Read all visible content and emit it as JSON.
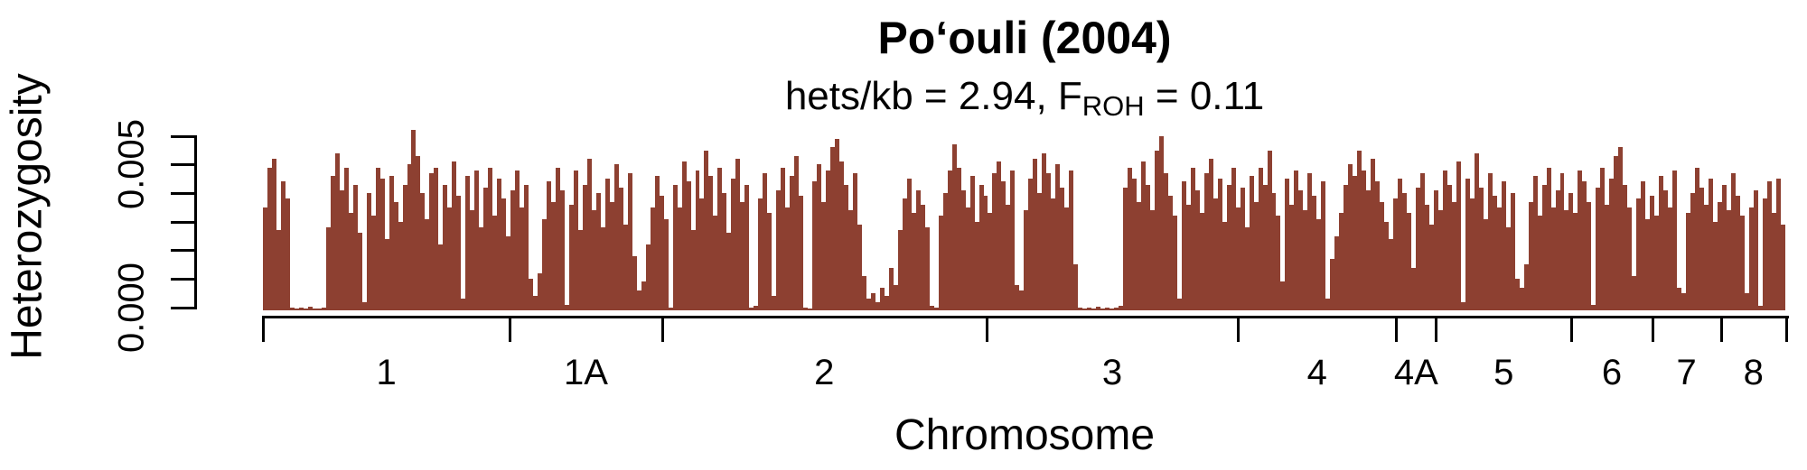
{
  "title": "Po‘ouli (2004)",
  "subtitle": {
    "prefix": "hets/kb = 2.94, F",
    "subscript": "ROH",
    "suffix": " = 0.11"
  },
  "y_axis": {
    "label": "Heterozygosity",
    "tick_labels": [
      "0.000",
      "0.005"
    ]
  },
  "x_axis": {
    "label": "Chromosome",
    "tick_labels": [
      "1",
      "1A",
      "2",
      "3",
      "4",
      "4A",
      "5",
      "6",
      "7",
      "8"
    ]
  },
  "colors": {
    "bar": "#8D4031",
    "axis": "#000000",
    "text": "#000000",
    "background": "#FFFFFF"
  },
  "chart_data": {
    "type": "bar",
    "title": "Po‘ouli (2004)",
    "subtitle": "hets/kb = 2.94, F_ROH = 0.11",
    "xlabel": "Chromosome",
    "ylabel": "Heterozygosity",
    "ylim": [
      0,
      0.006
    ],
    "grid": false,
    "legend": "none",
    "y_ticks": [
      0,
      0.001,
      0.002,
      0.003,
      0.004,
      0.005,
      0.006
    ],
    "y_tick_labels": [
      {
        "value": 0,
        "label": "0.000"
      },
      {
        "value": 0.005,
        "label": "0.005"
      }
    ],
    "categories": [
      "1",
      "1A",
      "2",
      "3",
      "4",
      "4A",
      "5",
      "6",
      "7",
      "8"
    ],
    "chromosome_boundaries_frac": [
      0,
      0.162,
      0.262,
      0.475,
      0.64,
      0.744,
      0.77,
      0.859,
      0.912,
      0.957,
      1.0
    ],
    "values_unit": "heterozygosity per window, multiplied by 1000 (estimated from plot pixels)",
    "values_x1000": [
      3.6,
      5.0,
      5.3,
      2.8,
      4.5,
      3.9,
      0.1,
      0.06,
      0.1,
      0.07,
      0.12,
      0.08,
      0.05,
      0.1,
      2.9,
      4.7,
      5.5,
      4.2,
      5.0,
      3.4,
      4.4,
      2.7,
      0.3,
      4.1,
      3.3,
      5.0,
      4.6,
      2.5,
      4.7,
      3.8,
      3.1,
      4.4,
      5.1,
      6.3,
      5.4,
      4.1,
      3.2,
      4.8,
      5.0,
      2.3,
      4.4,
      3.6,
      5.2,
      4.0,
      0.4,
      4.7,
      3.5,
      4.9,
      2.9,
      4.3,
      5.0,
      3.3,
      4.6,
      3.9,
      2.6,
      4.2,
      4.9,
      3.6,
      4.4,
      1.1,
      0.5,
      1.3,
      3.2,
      4.5,
      3.8,
      5.0,
      4.2,
      0.2,
      3.7,
      4.9,
      2.8,
      4.4,
      5.3,
      3.5,
      4.1,
      2.9,
      4.6,
      3.8,
      5.1,
      4.3,
      3.0,
      4.8,
      1.9,
      0.7,
      1.0,
      2.3,
      3.6,
      4.7,
      4.0,
      3.2,
      0.1,
      4.4,
      3.6,
      5.2,
      4.5,
      2.8,
      4.9,
      3.9,
      5.6,
      4.7,
      3.3,
      5.0,
      4.1,
      2.7,
      4.6,
      5.3,
      3.8,
      4.4,
      0.1,
      0.15,
      3.9,
      4.8,
      3.4,
      0.5,
      4.2,
      5.0,
      3.6,
      4.7,
      5.4,
      4.0,
      0.1,
      0.08,
      4.5,
      5.1,
      3.8,
      4.9,
      5.7,
      6.0,
      5.2,
      4.4,
      3.5,
      4.8,
      3.0,
      1.2,
      0.4,
      0.6,
      0.3,
      0.8,
      0.5,
      1.5,
      0.9,
      2.8,
      3.9,
      4.6,
      3.4,
      4.2,
      3.7,
      2.9,
      0.15,
      0.1,
      3.3,
      4.1,
      4.9,
      5.8,
      5.0,
      4.2,
      3.6,
      4.7,
      3.1,
      4.4,
      4.0,
      3.4,
      4.8,
      5.2,
      4.5,
      3.7,
      4.9,
      0.9,
      0.7,
      3.5,
      4.6,
      5.3,
      4.1,
      5.5,
      4.8,
      3.9,
      5.1,
      4.3,
      3.6,
      4.9,
      1.6,
      0.1,
      0.07,
      0.1,
      0.05,
      0.12,
      0.08,
      0.1,
      0.06,
      0.1,
      0.15,
      4.3,
      5.0,
      4.6,
      3.8,
      5.2,
      4.4,
      3.5,
      5.6,
      6.1,
      4.8,
      4.0,
      3.3,
      0.4,
      4.5,
      3.7,
      5.0,
      4.2,
      3.4,
      4.8,
      5.3,
      3.9,
      4.6,
      3.1,
      4.4,
      5.0,
      3.6,
      4.3,
      2.9,
      4.7,
      3.8,
      5.0,
      4.4,
      5.6,
      4.1,
      3.3,
      1.0,
      4.6,
      3.7,
      4.9,
      4.2,
      3.5,
      4.8,
      4.0,
      3.2,
      4.5,
      0.4,
      1.8,
      2.6,
      3.4,
      4.4,
      5.1,
      4.7,
      5.6,
      4.9,
      4.2,
      5.3,
      4.5,
      3.8,
      3.1,
      2.5,
      3.9,
      4.6,
      4.1,
      3.4,
      1.5,
      4.3,
      4.8,
      3.7,
      3.0,
      4.2,
      3.5,
      4.9,
      4.4,
      3.8,
      5.2,
      0.3,
      4.6,
      3.9,
      5.5,
      4.3,
      3.2,
      4.8,
      4.0,
      3.6,
      4.5,
      2.9,
      4.1,
      1.1,
      0.8,
      1.6,
      3.8,
      4.7,
      3.3,
      4.4,
      5.0,
      3.6,
      4.2,
      4.8,
      3.5,
      4.1,
      3.4,
      4.9,
      4.5,
      3.8,
      0.2,
      4.3,
      5.0,
      3.7,
      4.6,
      5.4,
      5.7,
      4.4,
      3.6,
      1.2,
      3.9,
      4.5,
      3.2,
      4.0,
      3.3,
      4.7,
      4.2,
      3.6,
      4.9,
      0.8,
      0.6,
      3.4,
      4.1,
      5.0,
      4.3,
      3.7,
      4.6,
      3.1,
      3.8,
      4.4,
      3.5,
      4.8,
      4.0,
      3.3,
      0.6,
      3.6,
      4.2,
      0.15,
      3.9,
      4.5,
      3.4,
      4.6,
      3.0
    ]
  }
}
